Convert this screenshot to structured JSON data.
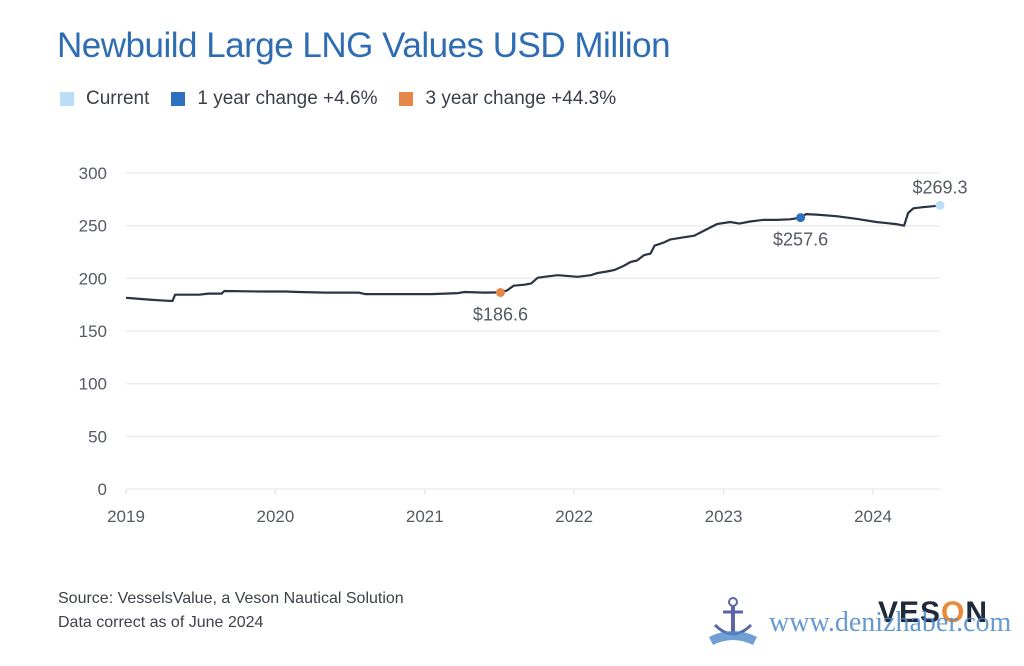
{
  "title": "Newbuild Large LNG Values USD Million",
  "legend": [
    {
      "label": "Current",
      "color": "#b9def5"
    },
    {
      "label": "1 year change +4.6%",
      "color": "#2f6fc0"
    },
    {
      "label": "3 year change +44.3%",
      "color": "#e8864a"
    }
  ],
  "footer": {
    "source": "Source: VesselsValue, a Veson Nautical Solution",
    "date_note": "Data correct as of June 2024"
  },
  "logo": {
    "text_prefix": "VES",
    "text_o": "O",
    "text_suffix": "N"
  },
  "watermark": {
    "url": "www.denizhaber.com"
  },
  "chart_data": {
    "type": "line",
    "title": "Newbuild Large LNG Values USD Million",
    "xlabel": "",
    "ylabel": "",
    "ylim": [
      0,
      300
    ],
    "xlim": [
      2019,
      2024.5
    ],
    "yticks": [
      0,
      50,
      100,
      150,
      200,
      250,
      300
    ],
    "xticks": [
      "2019",
      "2020",
      "2021",
      "2022",
      "2023",
      "2024"
    ],
    "grid": true,
    "legend_position": "top-left",
    "line_color": "#2b3444",
    "series": [
      {
        "name": "Newbuild Large LNG Value",
        "points": [
          [
            2019.0,
            181.5
          ],
          [
            2019.1,
            180.5
          ],
          [
            2019.2,
            179.5
          ],
          [
            2019.3,
            178.8
          ],
          [
            2019.35,
            178.5
          ],
          [
            2019.37,
            184.5
          ],
          [
            2019.55,
            184.5
          ],
          [
            2019.62,
            185.5
          ],
          [
            2019.72,
            185.5
          ],
          [
            2019.74,
            188.0
          ],
          [
            2020.0,
            187.5
          ],
          [
            2020.2,
            187.5
          ],
          [
            2020.3,
            187.0
          ],
          [
            2020.5,
            186.5
          ],
          [
            2020.75,
            186.5
          ],
          [
            2020.8,
            185.0
          ],
          [
            2021.0,
            185.0
          ],
          [
            2021.3,
            185.0
          ],
          [
            2021.5,
            186.0
          ],
          [
            2021.55,
            187.0
          ],
          [
            2021.7,
            186.5
          ],
          [
            2021.82,
            186.6
          ],
          [
            2021.87,
            188.5
          ],
          [
            2021.92,
            193.0
          ],
          [
            2022.0,
            194.0
          ],
          [
            2022.05,
            195.0
          ],
          [
            2022.1,
            200.5
          ],
          [
            2022.15,
            201.5
          ],
          [
            2022.25,
            203.0
          ],
          [
            2022.3,
            202.5
          ],
          [
            2022.4,
            201.5
          ],
          [
            2022.5,
            203.0
          ],
          [
            2022.55,
            205.0
          ],
          [
            2022.62,
            206.5
          ],
          [
            2022.68,
            208.0
          ],
          [
            2022.75,
            212.0
          ],
          [
            2022.8,
            215.5
          ],
          [
            2022.85,
            217.0
          ],
          [
            2022.9,
            222.0
          ],
          [
            2022.95,
            223.5
          ],
          [
            2022.98,
            231.0
          ],
          [
            2023.05,
            234.0
          ],
          [
            2023.1,
            237.0
          ],
          [
            2023.2,
            239.0
          ],
          [
            2023.28,
            240.5
          ],
          [
            2023.35,
            245.0
          ],
          [
            2023.45,
            251.5
          ],
          [
            2023.55,
            253.5
          ],
          [
            2023.62,
            252.0
          ],
          [
            2023.7,
            254.0
          ],
          [
            2023.8,
            255.5
          ],
          [
            2023.9,
            255.5
          ],
          [
            2024.0,
            256.0
          ],
          [
            2024.08,
            257.6
          ],
          [
            2024.12,
            261.0
          ],
          [
            2024.2,
            260.5
          ],
          [
            2024.35,
            259.0
          ],
          [
            2024.5,
            256.5
          ],
          [
            2024.65,
            253.5
          ],
          [
            2024.8,
            251.5
          ],
          [
            2024.86,
            250.0
          ],
          [
            2024.89,
            262.0
          ],
          [
            2024.93,
            266.5
          ],
          [
            2025.0,
            267.5
          ],
          [
            2025.08,
            268.5
          ],
          [
            2025.13,
            269.3
          ]
        ]
      }
    ],
    "annotations": [
      {
        "label": "$186.6",
        "x": 2021.82,
        "y": 186.6,
        "marker": "3 year change",
        "color": "#e8864a"
      },
      {
        "label": "$257.6",
        "x": 2024.08,
        "y": 257.6,
        "marker": "1 year change",
        "color": "#2f6fc0"
      },
      {
        "label": "$269.3",
        "x": 2025.13,
        "y": 269.3,
        "marker": "Current",
        "color": "#b9def5"
      }
    ]
  }
}
